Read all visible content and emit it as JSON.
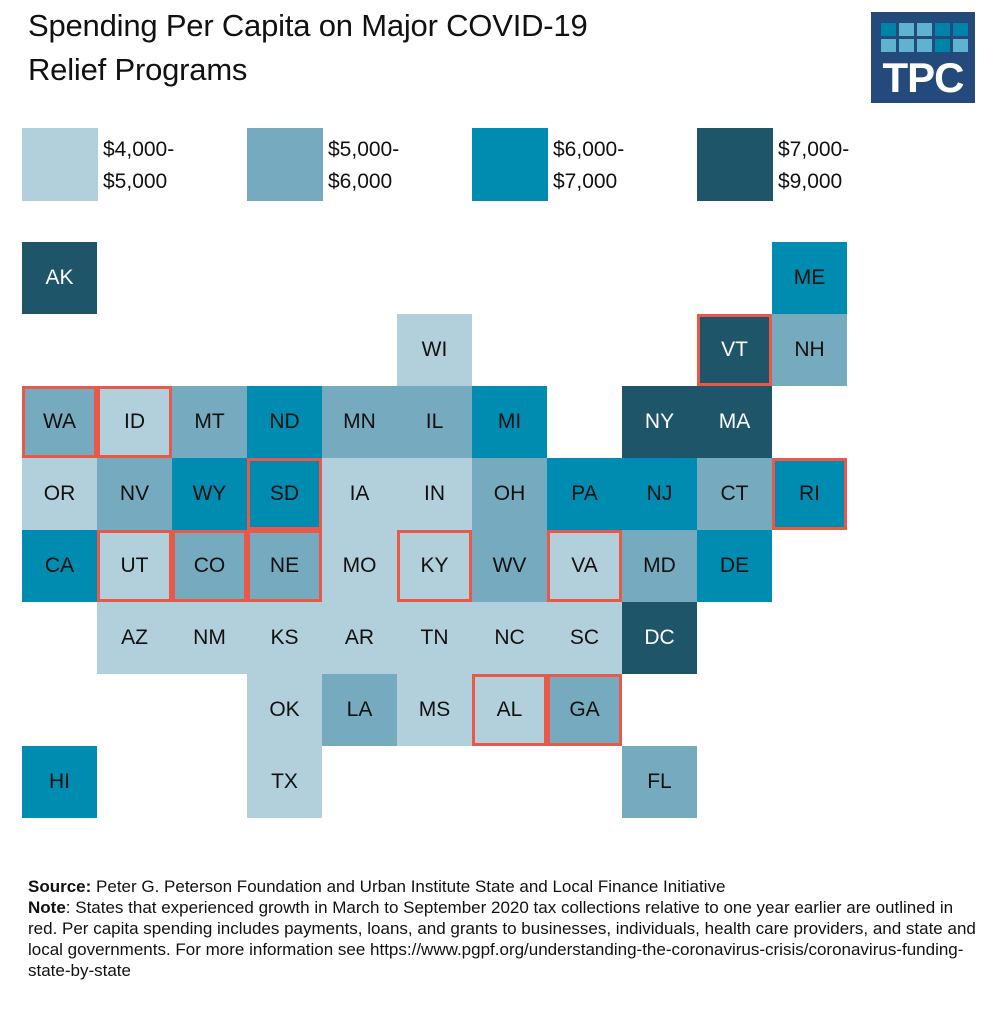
{
  "title": {
    "line1": "Spending Per Capita on Major COVID-19",
    "line2": "Relief Programs"
  },
  "logo": {
    "text": "TPC",
    "cell_colors": [
      "#0083a8",
      "#5fb3cf",
      "#5fb3cf",
      "#0083a8",
      "#0083a8",
      "#5fb3cf",
      "#5fb3cf",
      "#5fb3cf",
      "#0083a8",
      "#5fb3cf"
    ]
  },
  "colors": {
    "bin1": "#b2d0db",
    "bin2": "#76abbf",
    "bin3": "#008bb0",
    "bin4": "#1f5569",
    "outline": "#e8594a"
  },
  "chart_data": {
    "type": "heatmap",
    "title": "Spending Per Capita on Major COVID-19 Relief Programs",
    "legend": [
      {
        "bin": "bin1",
        "line1": "$4,000-",
        "line2": "$5,000"
      },
      {
        "bin": "bin2",
        "line1": "$5,000-",
        "line2": "$6,000"
      },
      {
        "bin": "bin3",
        "line1": "$6,000-",
        "line2": "$7,000"
      },
      {
        "bin": "bin4",
        "line1": "$7,000-",
        "line2": "$9,000"
      }
    ],
    "legend_placement": "top",
    "outline_meaning": "States that experienced growth in March to September 2020 tax collections relative to one year earlier",
    "states": [
      {
        "abbr": "AK",
        "row": 0,
        "col": 0,
        "bin": "bin4",
        "outlined": false
      },
      {
        "abbr": "ME",
        "row": 0,
        "col": 10,
        "bin": "bin3",
        "outlined": false
      },
      {
        "abbr": "WI",
        "row": 1,
        "col": 5,
        "bin": "bin1",
        "outlined": false
      },
      {
        "abbr": "VT",
        "row": 1,
        "col": 9,
        "bin": "bin4",
        "outlined": true
      },
      {
        "abbr": "NH",
        "row": 1,
        "col": 10,
        "bin": "bin2",
        "outlined": false
      },
      {
        "abbr": "WA",
        "row": 2,
        "col": 0,
        "bin": "bin2",
        "outlined": true
      },
      {
        "abbr": "ID",
        "row": 2,
        "col": 1,
        "bin": "bin1",
        "outlined": true
      },
      {
        "abbr": "MT",
        "row": 2,
        "col": 2,
        "bin": "bin2",
        "outlined": false
      },
      {
        "abbr": "ND",
        "row": 2,
        "col": 3,
        "bin": "bin3",
        "outlined": false
      },
      {
        "abbr": "MN",
        "row": 2,
        "col": 4,
        "bin": "bin2",
        "outlined": false
      },
      {
        "abbr": "IL",
        "row": 2,
        "col": 5,
        "bin": "bin2",
        "outlined": false
      },
      {
        "abbr": "MI",
        "row": 2,
        "col": 6,
        "bin": "bin3",
        "outlined": false
      },
      {
        "abbr": "NY",
        "row": 2,
        "col": 8,
        "bin": "bin4",
        "outlined": false
      },
      {
        "abbr": "MA",
        "row": 2,
        "col": 9,
        "bin": "bin4",
        "outlined": false
      },
      {
        "abbr": "OR",
        "row": 3,
        "col": 0,
        "bin": "bin1",
        "outlined": false
      },
      {
        "abbr": "NV",
        "row": 3,
        "col": 1,
        "bin": "bin2",
        "outlined": false
      },
      {
        "abbr": "WY",
        "row": 3,
        "col": 2,
        "bin": "bin3",
        "outlined": false
      },
      {
        "abbr": "SD",
        "row": 3,
        "col": 3,
        "bin": "bin3",
        "outlined": true
      },
      {
        "abbr": "IA",
        "row": 3,
        "col": 4,
        "bin": "bin1",
        "outlined": false
      },
      {
        "abbr": "IN",
        "row": 3,
        "col": 5,
        "bin": "bin1",
        "outlined": false
      },
      {
        "abbr": "OH",
        "row": 3,
        "col": 6,
        "bin": "bin2",
        "outlined": false
      },
      {
        "abbr": "PA",
        "row": 3,
        "col": 7,
        "bin": "bin3",
        "outlined": false
      },
      {
        "abbr": "NJ",
        "row": 3,
        "col": 8,
        "bin": "bin3",
        "outlined": false
      },
      {
        "abbr": "CT",
        "row": 3,
        "col": 9,
        "bin": "bin2",
        "outlined": false
      },
      {
        "abbr": "RI",
        "row": 3,
        "col": 10,
        "bin": "bin3",
        "outlined": true
      },
      {
        "abbr": "CA",
        "row": 4,
        "col": 0,
        "bin": "bin3",
        "outlined": false
      },
      {
        "abbr": "UT",
        "row": 4,
        "col": 1,
        "bin": "bin1",
        "outlined": true
      },
      {
        "abbr": "CO",
        "row": 4,
        "col": 2,
        "bin": "bin2",
        "outlined": true
      },
      {
        "abbr": "NE",
        "row": 4,
        "col": 3,
        "bin": "bin2",
        "outlined": true
      },
      {
        "abbr": "MO",
        "row": 4,
        "col": 4,
        "bin": "bin1",
        "outlined": false
      },
      {
        "abbr": "KY",
        "row": 4,
        "col": 5,
        "bin": "bin1",
        "outlined": true
      },
      {
        "abbr": "WV",
        "row": 4,
        "col": 6,
        "bin": "bin2",
        "outlined": false
      },
      {
        "abbr": "VA",
        "row": 4,
        "col": 7,
        "bin": "bin1",
        "outlined": true
      },
      {
        "abbr": "MD",
        "row": 4,
        "col": 8,
        "bin": "bin2",
        "outlined": false
      },
      {
        "abbr": "DE",
        "row": 4,
        "col": 9,
        "bin": "bin3",
        "outlined": false
      },
      {
        "abbr": "AZ",
        "row": 5,
        "col": 1,
        "bin": "bin1",
        "outlined": false
      },
      {
        "abbr": "NM",
        "row": 5,
        "col": 2,
        "bin": "bin1",
        "outlined": false
      },
      {
        "abbr": "KS",
        "row": 5,
        "col": 3,
        "bin": "bin1",
        "outlined": false
      },
      {
        "abbr": "AR",
        "row": 5,
        "col": 4,
        "bin": "bin1",
        "outlined": false
      },
      {
        "abbr": "TN",
        "row": 5,
        "col": 5,
        "bin": "bin1",
        "outlined": false
      },
      {
        "abbr": "NC",
        "row": 5,
        "col": 6,
        "bin": "bin1",
        "outlined": false
      },
      {
        "abbr": "SC",
        "row": 5,
        "col": 7,
        "bin": "bin1",
        "outlined": false
      },
      {
        "abbr": "DC",
        "row": 5,
        "col": 8,
        "bin": "bin4",
        "outlined": false
      },
      {
        "abbr": "OK",
        "row": 6,
        "col": 3,
        "bin": "bin1",
        "outlined": false
      },
      {
        "abbr": "LA",
        "row": 6,
        "col": 4,
        "bin": "bin2",
        "outlined": false
      },
      {
        "abbr": "MS",
        "row": 6,
        "col": 5,
        "bin": "bin1",
        "outlined": false
      },
      {
        "abbr": "AL",
        "row": 6,
        "col": 6,
        "bin": "bin1",
        "outlined": true
      },
      {
        "abbr": "GA",
        "row": 6,
        "col": 7,
        "bin": "bin2",
        "outlined": true
      },
      {
        "abbr": "HI",
        "row": 7,
        "col": 0,
        "bin": "bin3",
        "outlined": false
      },
      {
        "abbr": "TX",
        "row": 7,
        "col": 3,
        "bin": "bin1",
        "outlined": false
      },
      {
        "abbr": "FL",
        "row": 7,
        "col": 8,
        "bin": "bin2",
        "outlined": false
      }
    ]
  },
  "footer": {
    "source_label": "Source:",
    "source_text": " Peter G. Peterson Foundation and Urban Institute State and Local Finance Initiative",
    "note_label": "Note",
    "note_text": ": States that experienced growth in March to September 2020 tax collections relative to one year earlier are outlined in red. Per capita spending includes payments, loans, and grants to businesses, individuals, health care providers, and state and local governments. For more information see https://www.pgpf.org/understanding-the-coronavirus-crisis/coronavirus-funding-state-by-state"
  }
}
